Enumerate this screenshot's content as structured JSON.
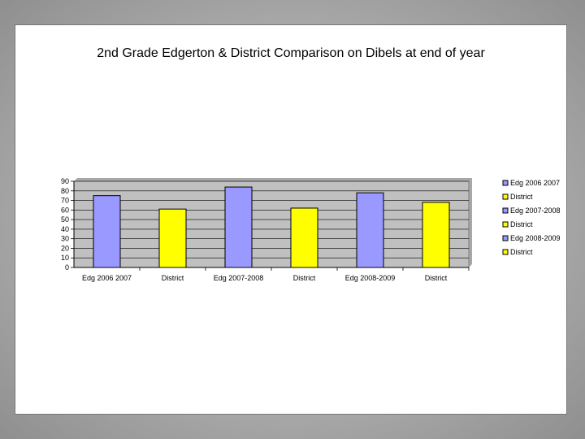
{
  "chart_data": {
    "type": "bar",
    "title": "2nd Grade Edgerton & District Comparison on Dibels at end of year",
    "xlabel": "",
    "ylabel": "",
    "ylim": [
      0,
      90
    ],
    "yticks": [
      0,
      10,
      20,
      30,
      40,
      50,
      60,
      70,
      80,
      90
    ],
    "categories": [
      "Edg 2006 2007",
      "District",
      "Edg 2007-2008",
      "District",
      "Edg 2008-2009",
      "District"
    ],
    "values": [
      75,
      61,
      84,
      62,
      78,
      68
    ],
    "bar_colors": [
      "#9999ff",
      "#ffff00",
      "#9999ff",
      "#ffff00",
      "#9999ff",
      "#ffff00"
    ],
    "legend": [
      "Edg 2006 2007",
      "District",
      "Edg 2007-2008",
      "District",
      "Edg 2008-2009",
      "District"
    ],
    "legend_position": "right",
    "plot_background": "#c0c0c0",
    "grid": true
  }
}
